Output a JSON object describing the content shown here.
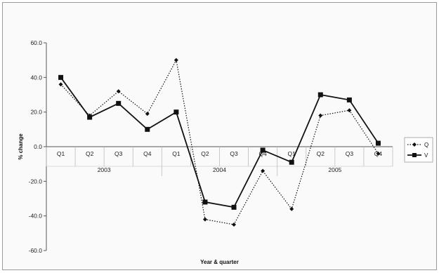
{
  "chart_data": {
    "type": "line",
    "title": "",
    "xlabel": "Year & quarter",
    "ylabel": "% change",
    "ylim": [
      -60,
      60
    ],
    "yticks": [
      "60.0",
      "40.0",
      "20.0",
      "0.0",
      "-20.0",
      "-40.0",
      "-60.0"
    ],
    "quarters": [
      "Q1",
      "Q2",
      "Q3",
      "Q4",
      "Q1",
      "Q2",
      "Q3",
      "Q4",
      "Q1",
      "Q2",
      "Q3",
      "Q4"
    ],
    "years": [
      "2003",
      "2004",
      "2005"
    ],
    "series": [
      {
        "name": "Q",
        "style": "dotted",
        "marker": "diamond",
        "values": [
          36,
          18,
          32,
          19,
          50,
          -42,
          -45,
          -14,
          -36,
          18,
          21,
          -4
        ]
      },
      {
        "name": "V",
        "style": "solid",
        "marker": "square",
        "values": [
          40,
          17,
          25,
          10,
          20,
          -32,
          -35,
          -2,
          -9,
          30,
          27,
          2
        ]
      }
    ],
    "grid": false,
    "legend": "right",
    "colors": {
      "line": "#111111",
      "axis": "#555555",
      "background": "#fafafa"
    }
  }
}
